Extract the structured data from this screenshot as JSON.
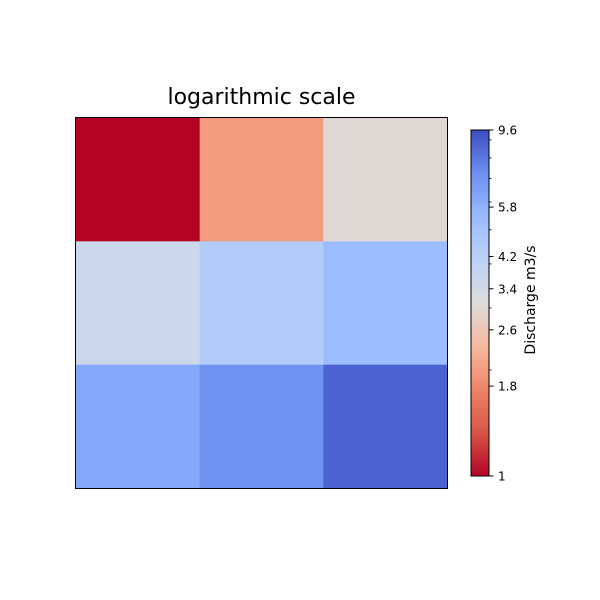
{
  "chart_data": {
    "type": "heatmap",
    "title": "logarithmic scale",
    "grid": false,
    "rows": 3,
    "cols": 3,
    "values": [
      [
        1.0,
        2.0,
        3.0
      ],
      [
        3.6,
        4.4,
        5.4
      ],
      [
        6.2,
        7.2,
        8.8
      ]
    ],
    "colormap": "coolwarm_r",
    "colorbar": {
      "label": "Discharge m3/s",
      "scale": "log",
      "range": [
        1,
        9.6
      ],
      "ticks": [
        "1",
        "1.8",
        "2.6",
        "3.4",
        "4.2",
        "5.8",
        "9.6"
      ],
      "tick_values": [
        1,
        1.8,
        2.6,
        3.4,
        4.2,
        5.8,
        9.6
      ],
      "placement": "right"
    }
  }
}
